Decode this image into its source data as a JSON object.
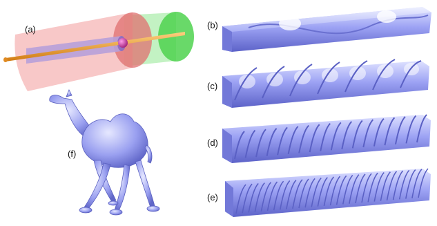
{
  "figure": {
    "panels": [
      {
        "id": "a",
        "label": "(a)"
      },
      {
        "id": "b",
        "label": "(b)"
      },
      {
        "id": "c",
        "label": "(c)"
      },
      {
        "id": "d",
        "label": "(d)"
      },
      {
        "id": "e",
        "label": "(e)"
      },
      {
        "id": "f",
        "label": "(f)"
      }
    ]
  }
}
